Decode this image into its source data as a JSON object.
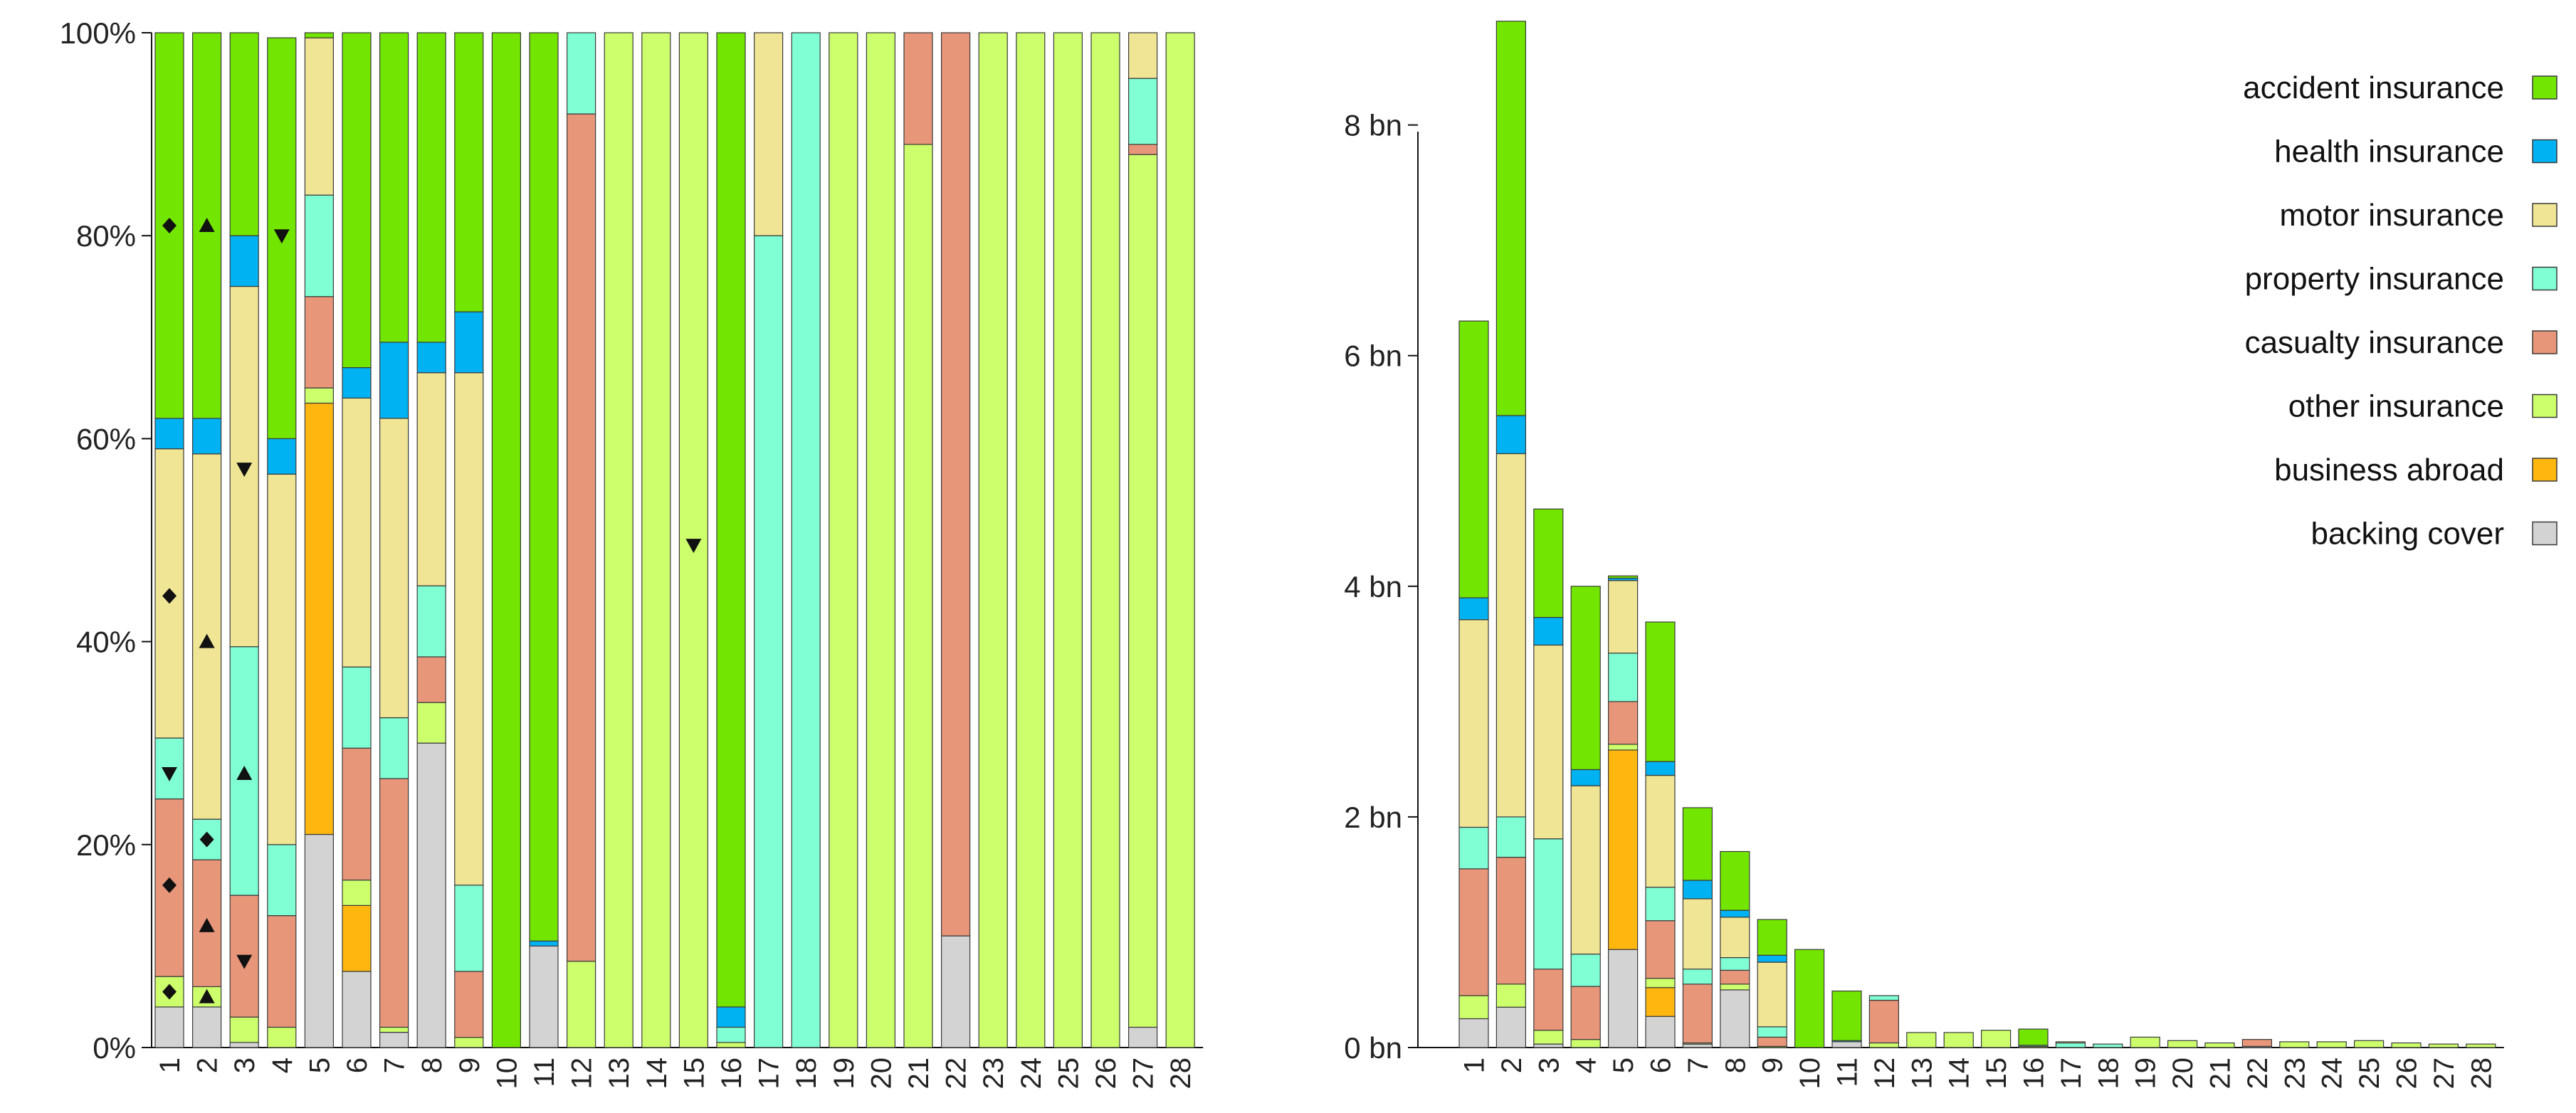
{
  "colors": {
    "accident": "#72e600",
    "health": "#00b2f2",
    "motor": "#f0e594",
    "property": "#80ffd4",
    "casualty": "#e8967a",
    "other": "#ccff6b",
    "abroad": "#ffb70f",
    "backing": "#d3d3d3"
  },
  "legend": [
    {
      "key": "accident",
      "label": "accident insurance"
    },
    {
      "key": "health",
      "label": "health insurance"
    },
    {
      "key": "motor",
      "label": "motor insurance"
    },
    {
      "key": "property",
      "label": "property insurance"
    },
    {
      "key": "casualty",
      "label": "casualty insurance"
    },
    {
      "key": "other",
      "label": "other insurance"
    },
    {
      "key": "abroad",
      "label": "business abroad"
    },
    {
      "key": "backing",
      "label": "backing cover"
    }
  ],
  "chart_data": [
    {
      "type": "bar",
      "stacked": true,
      "title": "",
      "xlabel": "",
      "ylabel": "",
      "ylim": [
        0,
        100
      ],
      "y_ticks": [
        0,
        20,
        40,
        60,
        80,
        100
      ],
      "y_tick_labels": [
        "0%",
        "20%",
        "40%",
        "60%",
        "80%",
        "100%"
      ],
      "categories": [
        "1",
        "2",
        "3",
        "4",
        "5",
        "6",
        "7",
        "8",
        "9",
        "10",
        "11",
        "12",
        "13",
        "14",
        "15",
        "16",
        "17",
        "18",
        "19",
        "20",
        "21",
        "22",
        "23",
        "24",
        "25",
        "26",
        "27",
        "28"
      ],
      "stack_order": [
        "backing",
        "abroad",
        "other",
        "casualty",
        "property",
        "motor",
        "health",
        "accident"
      ],
      "series": [
        {
          "name": "backing cover",
          "key": "backing",
          "values": [
            4,
            4,
            0.5,
            0,
            21,
            7.5,
            1.5,
            30,
            0,
            0,
            10,
            0,
            0,
            0,
            0,
            0,
            0,
            0,
            0,
            0,
            0,
            11,
            0,
            0,
            0,
            0,
            2,
            0
          ]
        },
        {
          "name": "business abroad",
          "key": "abroad",
          "values": [
            0,
            0,
            0,
            0,
            42.5,
            6.5,
            0,
            0,
            0,
            0,
            0,
            0,
            0,
            0,
            0,
            0,
            0,
            0,
            0,
            0,
            0,
            0,
            0,
            0,
            0,
            0,
            0,
            0
          ]
        },
        {
          "name": "other insurance",
          "key": "other",
          "values": [
            3,
            2,
            2.5,
            2,
            1.5,
            2.5,
            0.5,
            4,
            1,
            0,
            0,
            8.5,
            100,
            100,
            100,
            0.5,
            0,
            0,
            100,
            100,
            89,
            0,
            100,
            100,
            100,
            100,
            86,
            100
          ]
        },
        {
          "name": "casualty insurance",
          "key": "casualty",
          "values": [
            17.5,
            12.5,
            12,
            11,
            9,
            13,
            24.5,
            4.5,
            6.5,
            0,
            0,
            83.5,
            0,
            0,
            0,
            0,
            0,
            0,
            0,
            0,
            11,
            89,
            0,
            0,
            0,
            0,
            1,
            0
          ]
        },
        {
          "name": "property insurance",
          "key": "property",
          "values": [
            6,
            4,
            24.5,
            7,
            10,
            8,
            6,
            7,
            8.5,
            0,
            0,
            8,
            0,
            0,
            0,
            1.5,
            80,
            100,
            0,
            0,
            0,
            0,
            0,
            0,
            0,
            0,
            6.5,
            0
          ]
        },
        {
          "name": "motor insurance",
          "key": "motor",
          "values": [
            28.5,
            36,
            35.5,
            36.5,
            15.5,
            26.5,
            29.5,
            21,
            50.5,
            0,
            0,
            0,
            0,
            0,
            0,
            0,
            20,
            0,
            0,
            0,
            0,
            0,
            0,
            0,
            0,
            0,
            4.5,
            0
          ]
        },
        {
          "name": "health insurance",
          "key": "health",
          "values": [
            3,
            3.5,
            5,
            3.5,
            0,
            3,
            7.5,
            3,
            6,
            0,
            0.5,
            0,
            0,
            0,
            0,
            2,
            0,
            0,
            0,
            0,
            0,
            0,
            0,
            0,
            0,
            0,
            0,
            0
          ]
        },
        {
          "name": "accident insurance",
          "key": "accident",
          "values": [
            38,
            38,
            20,
            39.5,
            0.5,
            33,
            30.5,
            30.5,
            27.5,
            100,
            89.5,
            0,
            0,
            0,
            0,
            96,
            0,
            0,
            0,
            0,
            0,
            0,
            0,
            0,
            0,
            0,
            0,
            0
          ]
        }
      ],
      "markers": [
        {
          "category": "1",
          "shape": "diamond",
          "value": 81
        },
        {
          "category": "1",
          "shape": "diamond",
          "value": 44.5
        },
        {
          "category": "1",
          "shape": "triangle-down",
          "value": 27
        },
        {
          "category": "1",
          "shape": "diamond",
          "value": 16
        },
        {
          "category": "1",
          "shape": "diamond",
          "value": 5.5
        },
        {
          "category": "2",
          "shape": "triangle-up",
          "value": 81
        },
        {
          "category": "2",
          "shape": "triangle-up",
          "value": 40
        },
        {
          "category": "2",
          "shape": "diamond",
          "value": 20.5
        },
        {
          "category": "2",
          "shape": "triangle-up",
          "value": 12
        },
        {
          "category": "2",
          "shape": "triangle-up",
          "value": 5
        },
        {
          "category": "3",
          "shape": "triangle-down",
          "value": 57
        },
        {
          "category": "3",
          "shape": "triangle-up",
          "value": 27
        },
        {
          "category": "3",
          "shape": "triangle-down",
          "value": 8.5
        },
        {
          "category": "4",
          "shape": "triangle-down",
          "value": 80
        },
        {
          "category": "15",
          "shape": "triangle-down",
          "value": 49.5
        }
      ]
    },
    {
      "type": "bar",
      "stacked": true,
      "title": "",
      "xlabel": "",
      "ylabel": "",
      "unit": "bn",
      "ylim": [
        0,
        8.8
      ],
      "y_ticks": [
        0,
        2,
        4,
        6,
        8
      ],
      "y_tick_labels": [
        "0 bn",
        "2 bn",
        "4 bn",
        "6 bn",
        "8 bn"
      ],
      "categories": [
        "1",
        "2",
        "3",
        "4",
        "5",
        "6",
        "7",
        "8",
        "9",
        "10",
        "11",
        "12",
        "13",
        "14",
        "15",
        "16",
        "17",
        "18",
        "19",
        "20",
        "21",
        "22",
        "23",
        "24",
        "25",
        "26",
        "27",
        "28"
      ],
      "stack_order": [
        "backing",
        "abroad",
        "other",
        "casualty",
        "property",
        "motor",
        "health",
        "accident"
      ],
      "series": [
        {
          "name": "backing cover",
          "key": "backing",
          "values": [
            0.25,
            0.35,
            0.03,
            0,
            0.85,
            0.27,
            0.03,
            0.5,
            0,
            0,
            0.05,
            0,
            0,
            0,
            0,
            0,
            0,
            0,
            0,
            0,
            0,
            0.01,
            0,
            0,
            0,
            0,
            0,
            0
          ]
        },
        {
          "name": "business abroad",
          "key": "abroad",
          "values": [
            0,
            0,
            0,
            0,
            1.73,
            0.25,
            0,
            0,
            0,
            0,
            0,
            0,
            0,
            0,
            0,
            0,
            0,
            0,
            0,
            0,
            0,
            0,
            0,
            0,
            0,
            0,
            0,
            0
          ]
        },
        {
          "name": "other insurance",
          "key": "other",
          "values": [
            0.2,
            0.2,
            0.12,
            0.07,
            0.05,
            0.08,
            0.01,
            0.05,
            0.01,
            0,
            0,
            0.04,
            0.13,
            0.13,
            0.15,
            0.01,
            0,
            0,
            0.09,
            0.06,
            0.04,
            0,
            0.05,
            0.05,
            0.06,
            0.04,
            0.03,
            0.03
          ]
        },
        {
          "name": "casualty insurance",
          "key": "casualty",
          "values": [
            1.1,
            1.1,
            0.53,
            0.46,
            0.37,
            0.5,
            0.51,
            0.12,
            0.08,
            0,
            0,
            0.37,
            0,
            0,
            0,
            0,
            0,
            0,
            0,
            0,
            0,
            0.06,
            0,
            0,
            0,
            0,
            0,
            0
          ]
        },
        {
          "name": "property insurance",
          "key": "property",
          "values": [
            0.36,
            0.35,
            1.13,
            0.28,
            0.42,
            0.29,
            0.13,
            0.11,
            0.09,
            0,
            0,
            0.04,
            0,
            0,
            0,
            0.01,
            0.04,
            0.03,
            0,
            0,
            0,
            0,
            0,
            0,
            0,
            0,
            0,
            0
          ]
        },
        {
          "name": "motor insurance",
          "key": "motor",
          "values": [
            1.8,
            3.15,
            1.68,
            1.46,
            0.63,
            0.97,
            0.61,
            0.35,
            0.56,
            0,
            0,
            0,
            0,
            0,
            0,
            0,
            0.01,
            0,
            0,
            0,
            0,
            0,
            0,
            0,
            0,
            0,
            0,
            0
          ]
        },
        {
          "name": "health insurance",
          "key": "health",
          "values": [
            0.19,
            0.33,
            0.24,
            0.14,
            0.02,
            0.12,
            0.16,
            0.06,
            0.06,
            0,
            0.01,
            0,
            0,
            0,
            0,
            0,
            0,
            0,
            0,
            0,
            0,
            0,
            0,
            0,
            0,
            0,
            0,
            0
          ]
        },
        {
          "name": "accident insurance",
          "key": "accident",
          "values": [
            2.4,
            3.42,
            0.94,
            1.59,
            0.02,
            1.21,
            0.63,
            0.51,
            0.31,
            0.85,
            0.43,
            0,
            0,
            0,
            0,
            0.14,
            0,
            0,
            0,
            0,
            0,
            0,
            0,
            0,
            0,
            0,
            0,
            0
          ]
        }
      ],
      "legend_position": "top-right"
    }
  ]
}
